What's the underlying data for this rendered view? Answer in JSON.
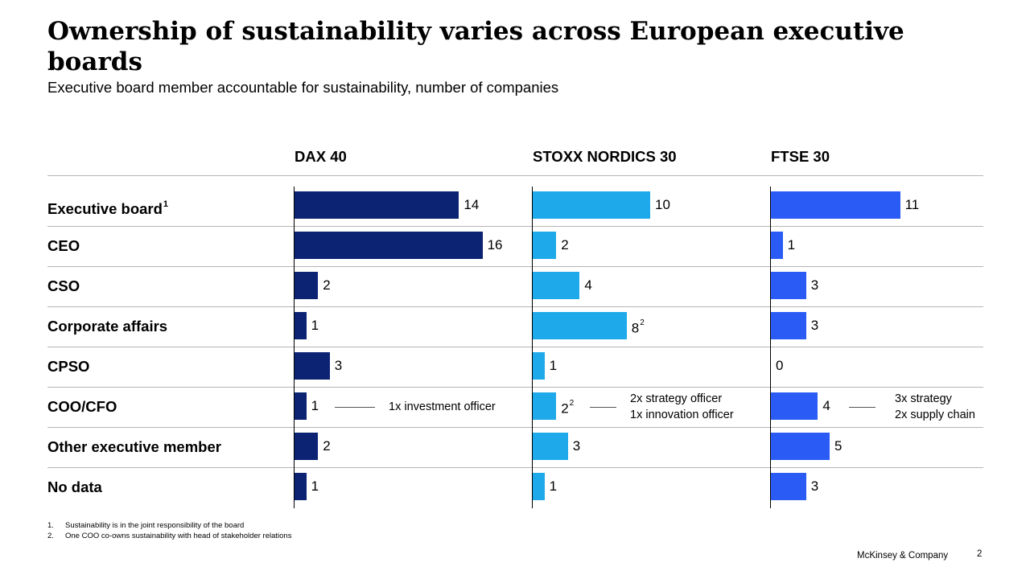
{
  "title": "Ownership of sustainability varies across European executive boards",
  "subtitle": "Executive board member accountable for sustainability, number of companies",
  "colors": {
    "dax": "#0b2372",
    "stoxx": "#1ea9ea",
    "ftse": "#2a5cf5"
  },
  "rows": [
    {
      "label": "Executive board",
      "sup": "1"
    },
    {
      "label": "CEO",
      "sup": ""
    },
    {
      "label": "CSO",
      "sup": ""
    },
    {
      "label": "Corporate affairs",
      "sup": ""
    },
    {
      "label": "CPSO",
      "sup": ""
    },
    {
      "label": "COO/CFO",
      "sup": ""
    },
    {
      "label": "Other executive member",
      "sup": ""
    },
    {
      "label": "No data",
      "sup": ""
    }
  ],
  "chart_data": {
    "type": "bar",
    "orientation": "horizontal",
    "categories": [
      "Executive board",
      "CEO",
      "CSO",
      "Corporate affairs",
      "CPSO",
      "COO/CFO",
      "Other executive member",
      "No data"
    ],
    "series": [
      {
        "name": "DAX 40",
        "values": [
          14,
          16,
          2,
          1,
          3,
          1,
          2,
          1
        ],
        "value_sups": [
          "",
          "",
          "",
          "",
          "",
          "",
          "",
          ""
        ]
      },
      {
        "name": "STOXX NORDICS 30",
        "values": [
          10,
          2,
          4,
          8,
          1,
          2,
          3,
          1
        ],
        "value_sups": [
          "",
          "",
          "",
          "2",
          "",
          "2",
          "",
          ""
        ]
      },
      {
        "name": "FTSE 30",
        "values": [
          11,
          1,
          3,
          3,
          0,
          4,
          5,
          3
        ],
        "value_sups": [
          "",
          "",
          "",
          "",
          "",
          "",
          "",
          ""
        ]
      }
    ],
    "annotations": [
      {
        "series": "DAX 40",
        "category": "COO/CFO",
        "lines": [
          "1x investment officer"
        ]
      },
      {
        "series": "STOXX NORDICS 30",
        "category": "COO/CFO",
        "lines": [
          "2x strategy officer",
          "1x innovation officer"
        ]
      },
      {
        "series": "FTSE 30",
        "category": "COO/CFO",
        "lines": [
          "3x strategy",
          "2x supply chain"
        ]
      }
    ]
  },
  "footnotes": [
    {
      "num": "1.",
      "text": "Sustainability is in the joint responsibility of the board"
    },
    {
      "num": "2.",
      "text": "One COO co-owns sustainability with head of stakeholder relations"
    }
  ],
  "brand": "McKinsey & Company",
  "page_number": "2"
}
